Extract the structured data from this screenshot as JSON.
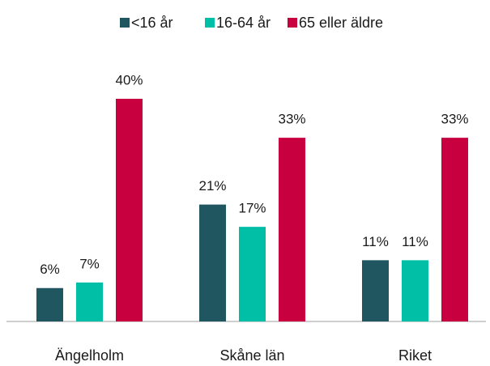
{
  "chart_data": {
    "type": "bar",
    "categories": [
      "Ängelholm",
      "Skåne län",
      "Riket"
    ],
    "series": [
      {
        "name": "<16 år",
        "color": "#1f5660",
        "values": [
          6,
          21,
          11
        ],
        "value_labels": [
          "6%",
          "21%",
          "11%"
        ]
      },
      {
        "name": "16-64 år",
        "color": "#00bfa6",
        "values": [
          7,
          17,
          11
        ],
        "value_labels": [
          "7%",
          "17%",
          "11%"
        ]
      },
      {
        "name": "65 eller äldre",
        "color": "#c8003f",
        "values": [
          40,
          33,
          33
        ],
        "value_labels": [
          "40%",
          "33%",
          "33%"
        ]
      }
    ],
    "ylim": [
      0,
      40
    ],
    "legend": "top"
  }
}
